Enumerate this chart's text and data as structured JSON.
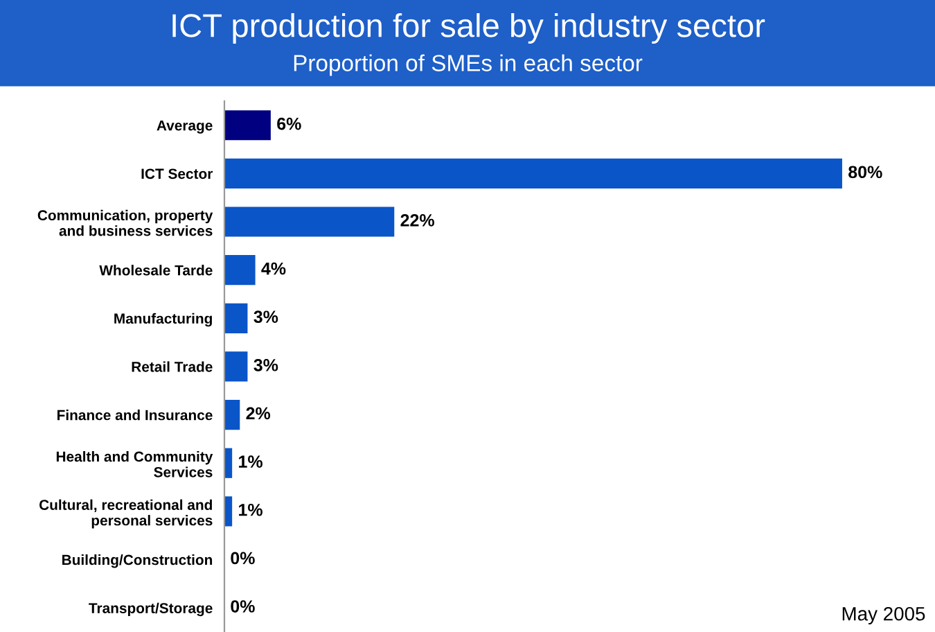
{
  "chart_data": {
    "type": "bar",
    "orientation": "horizontal",
    "title": "ICT production for sale by industry sector",
    "subtitle": "Proportion of SMEs in each sector",
    "categories": [
      "Average",
      "ICT Sector",
      "Communication, property\nand business services",
      "Wholesale Tarde",
      "Manufacturing",
      "Retail Trade",
      "Finance and Insurance",
      "Health and Community\nServices",
      "Cultural, recreational and\npersonal services",
      "Building/Construction",
      "Transport/Storage"
    ],
    "values": [
      6,
      80,
      22,
      4,
      3,
      3,
      2,
      1,
      1,
      0,
      0
    ],
    "colors": [
      "#000080",
      "#0a55c8",
      "#0a55c8",
      "#0a55c8",
      "#0a55c8",
      "#0a55c8",
      "#0a55c8",
      "#0a55c8",
      "#0a55c8",
      "#0a55c8",
      "#0a55c8"
    ],
    "value_labels": [
      "6%",
      "80%",
      "22%",
      "4%",
      "3%",
      "3%",
      "2%",
      "1%",
      "1%",
      "0%",
      "0%"
    ],
    "annotations": [
      "May 2005"
    ],
    "grid": false,
    "legend": false
  }
}
